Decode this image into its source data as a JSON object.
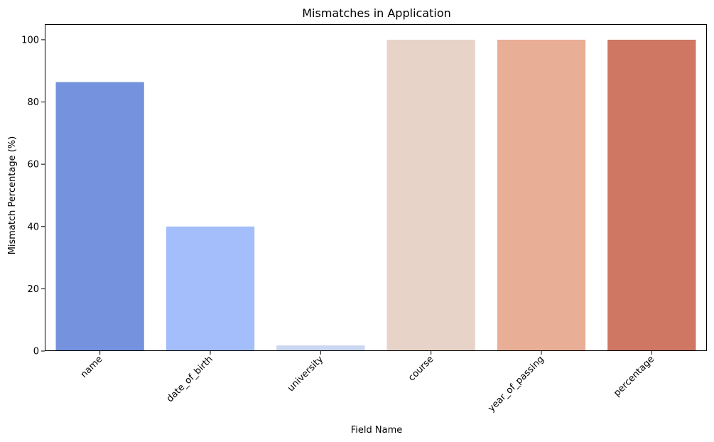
{
  "chart_data": {
    "type": "bar",
    "title": "Mismatches in Application",
    "xlabel": "Field Name",
    "ylabel": "Mismatch Percentage (%)",
    "categories": [
      "name",
      "date_of_birth",
      "university",
      "course",
      "year_of_passing",
      "percentage"
    ],
    "values": [
      86.4,
      40.0,
      1.8,
      100.0,
      100.0,
      100.0
    ],
    "colors": [
      "#7592de",
      "#a3befa",
      "#c9d7f0",
      "#e8d3c8",
      "#e9ae96",
      "#cf7763"
    ],
    "ylim": [
      0,
      105
    ],
    "yticks": [
      0,
      20,
      40,
      60,
      80,
      100
    ],
    "grid": false,
    "legend": "none"
  }
}
